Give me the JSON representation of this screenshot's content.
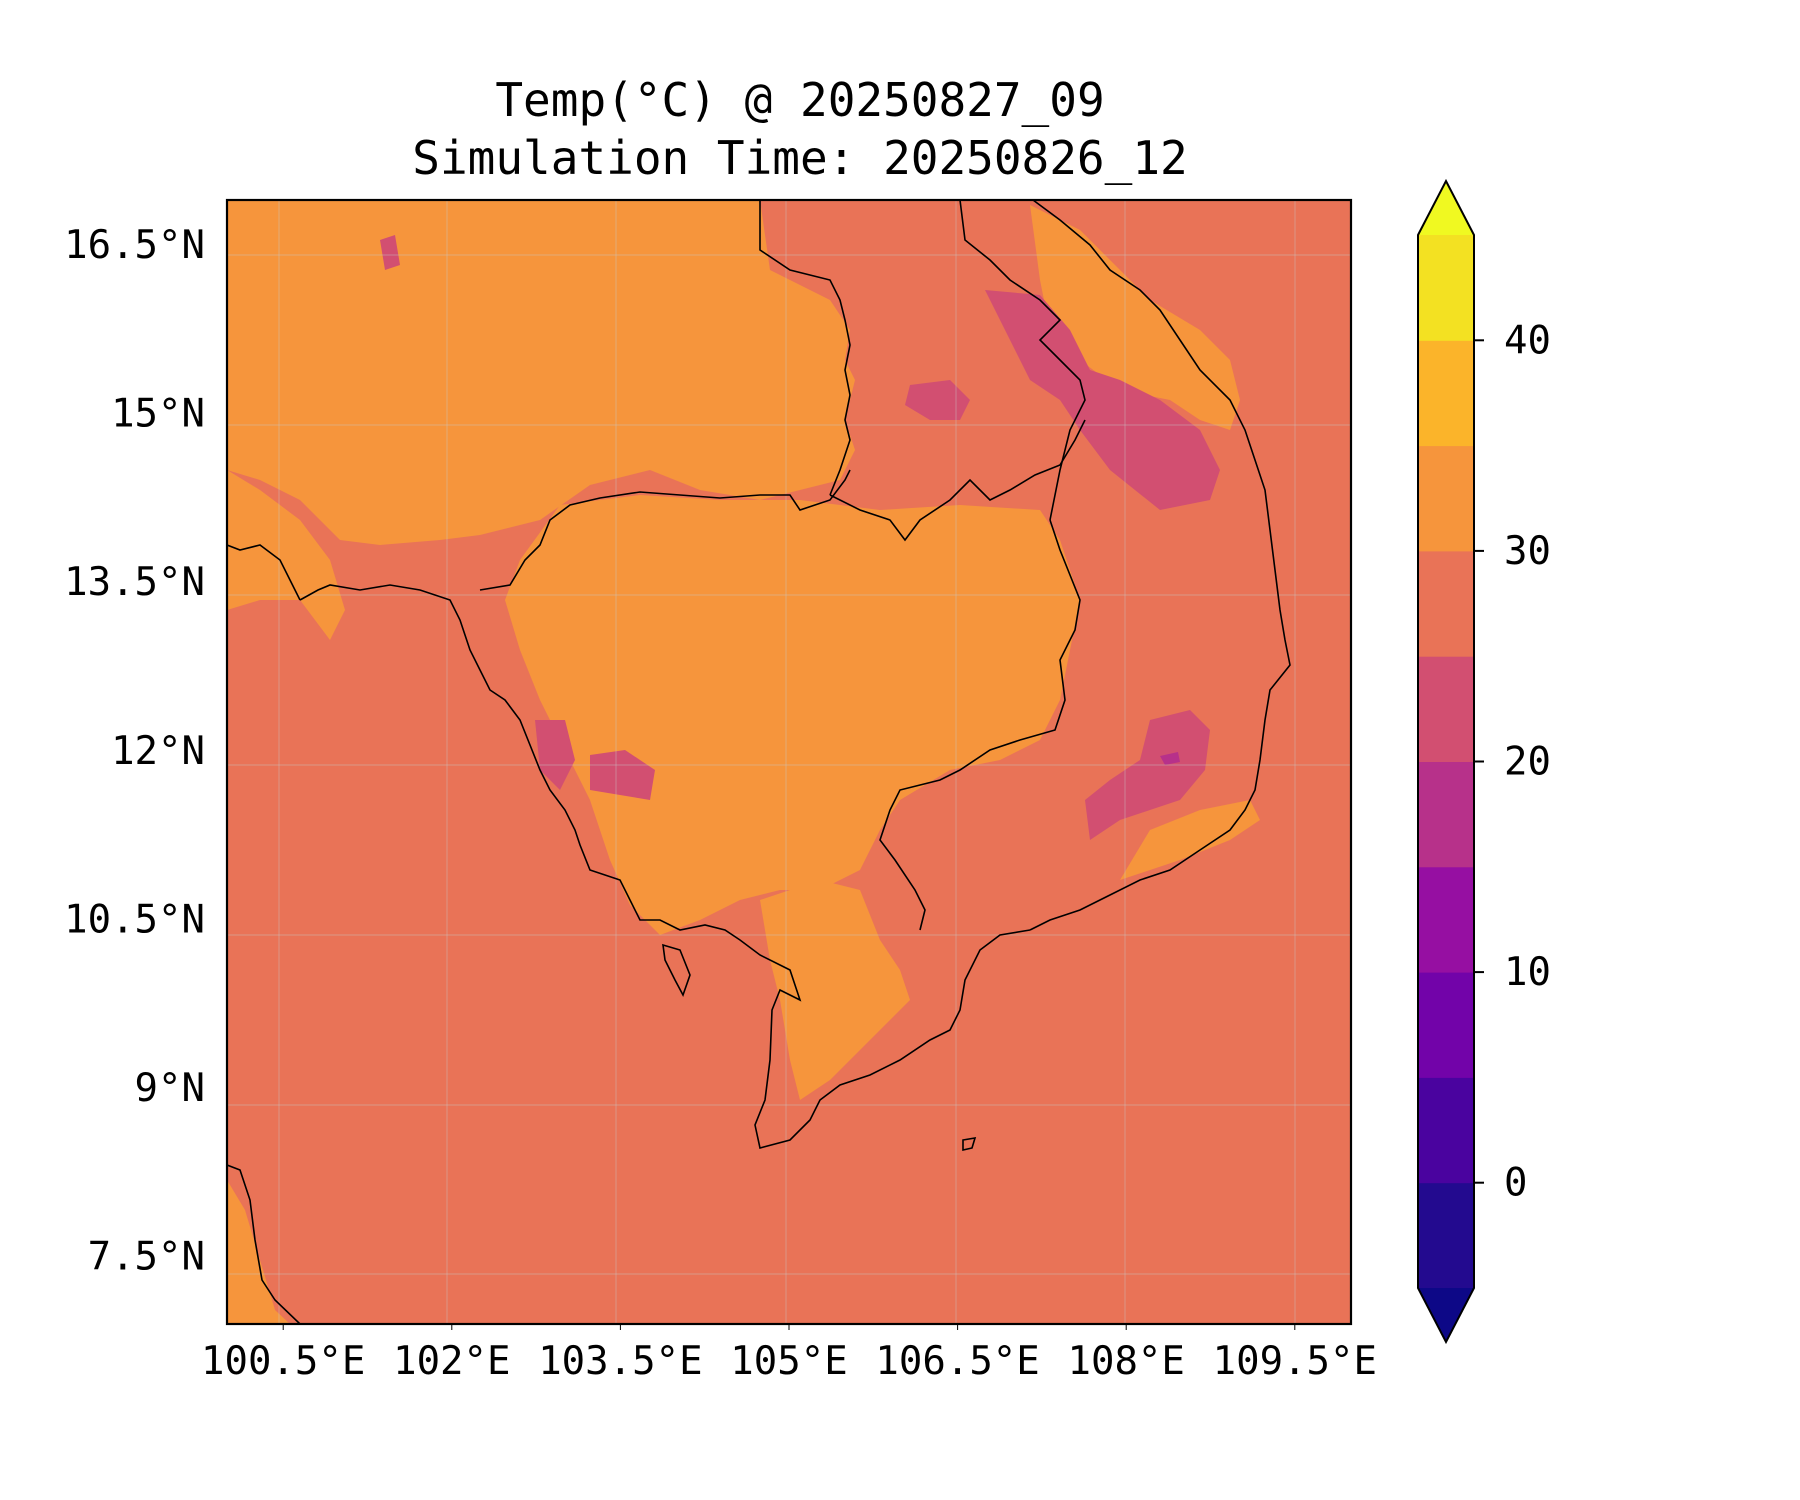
{
  "title": {
    "line1": "Temp(°C) @ 20250827_09",
    "line2": "Simulation Time: 20250826_12"
  },
  "map": {
    "lon_range": [
      100.0,
      110.0
    ],
    "lat_range": [
      6.9,
      16.9
    ],
    "xticks": [
      {
        "value": 100.5,
        "label": "100.5°E"
      },
      {
        "value": 102.0,
        "label": "102°E"
      },
      {
        "value": 103.5,
        "label": "103.5°E"
      },
      {
        "value": 105.0,
        "label": "105°E"
      },
      {
        "value": 106.5,
        "label": "106.5°E"
      },
      {
        "value": 108.0,
        "label": "108°E"
      },
      {
        "value": 109.5,
        "label": "109.5°E"
      }
    ],
    "yticks": [
      {
        "value": 16.5,
        "label": "16.5°N"
      },
      {
        "value": 15.0,
        "label": "15°N"
      },
      {
        "value": 13.5,
        "label": "13.5°N"
      },
      {
        "value": 12.0,
        "label": "12°N"
      },
      {
        "value": 10.5,
        "label": "10.5°N"
      },
      {
        "value": 9.0,
        "label": "9°N"
      },
      {
        "value": 7.5,
        "label": "7.5°N"
      }
    ],
    "gridlines": true,
    "background_level_color": "#e97357"
  },
  "colorbar": {
    "levels": [
      -5,
      0,
      5,
      10,
      15,
      20,
      25,
      30,
      35,
      40,
      45
    ],
    "colors": [
      "#230a8f",
      "#4a039f",
      "#7203a9",
      "#960fa2",
      "#b7318a",
      "#d24f71",
      "#e97357",
      "#f6953c",
      "#fbb42a",
      "#f3e122"
    ],
    "under_color": "#0d0887",
    "over_color": "#f0f921",
    "ticks": [
      {
        "value": 0,
        "label": "0"
      },
      {
        "value": 10,
        "label": "10"
      },
      {
        "value": 20,
        "label": "20"
      },
      {
        "value": 30,
        "label": "30"
      },
      {
        "value": 40,
        "label": "40"
      }
    ]
  }
}
